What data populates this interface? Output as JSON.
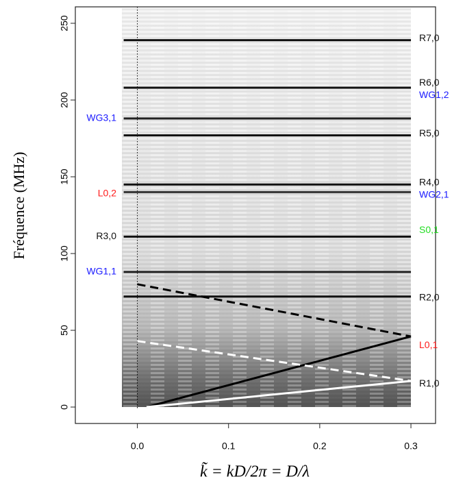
{
  "chart_data": {
    "type": "line",
    "ylabel": "Fréquence (MHz)",
    "xlabel": "k̃ = kD/2π = D/λ",
    "xlim": [
      -0.068,
      0.327
    ],
    "ylim": [
      -10.7,
      260.7
    ],
    "xticks": [
      {
        "value": 0,
        "label": "0.0"
      },
      0.1,
      0.2,
      0.3
    ],
    "yticks": [
      0,
      50,
      100,
      150,
      200,
      250
    ],
    "vline": 0,
    "series": [
      {
        "color": "#111111",
        "dash": false,
        "x": [
          -0.015,
          0.3
        ],
        "values": [
          239,
          239
        ]
      },
      {
        "color": "#111111",
        "dash": false,
        "x": [
          -0.015,
          0.3
        ],
        "values": [
          208,
          208
        ]
      },
      {
        "color": "#222222",
        "dash": false,
        "x": [
          -0.015,
          0.3
        ],
        "values": [
          188,
          188
        ]
      },
      {
        "color": "#111111",
        "dash": false,
        "x": [
          -0.015,
          0.3
        ],
        "values": [
          177,
          177
        ]
      },
      {
        "color": "#111111",
        "dash": false,
        "x": [
          -0.015,
          0.3
        ],
        "values": [
          145,
          145
        ]
      },
      {
        "color": "#333333",
        "dash": false,
        "x": [
          -0.015,
          0.3
        ],
        "values": [
          140,
          140
        ]
      },
      {
        "color": "#111111",
        "dash": false,
        "x": [
          -0.015,
          0.3
        ],
        "values": [
          111,
          111
        ]
      },
      {
        "color": "#222222",
        "dash": false,
        "x": [
          -0.015,
          0.3
        ],
        "values": [
          88,
          88
        ]
      },
      {
        "color": "#111111",
        "dash": false,
        "x": [
          -0.015,
          0.3
        ],
        "values": [
          72,
          72
        ]
      },
      {
        "color": "#000000",
        "dash": false,
        "x": [
          0.01,
          0.3
        ],
        "values": [
          0,
          46
        ]
      },
      {
        "color": "#000000",
        "dash": true,
        "x": [
          0.0,
          0.3
        ],
        "values": [
          80,
          46
        ]
      },
      {
        "color": "#ffffff",
        "dash": true,
        "x": [
          0.0,
          0.3
        ],
        "values": [
          43,
          17
        ]
      },
      {
        "color": "#ffffff",
        "dash": false,
        "x": [
          0.01,
          0.3
        ],
        "values": [
          0,
          17
        ]
      }
    ],
    "annotations": [
      {
        "text": "WG3,1",
        "y": 188,
        "side": "left",
        "color": "#1a1aff"
      },
      {
        "text": "L0,2",
        "y": 139,
        "side": "left",
        "color": "#ff1a1a"
      },
      {
        "text": "R3,0",
        "y": 111,
        "side": "left",
        "color": "#111111"
      },
      {
        "text": "WG1,1",
        "y": 88,
        "side": "left",
        "color": "#1a1aff"
      },
      {
        "text": "R7,0",
        "y": 240,
        "side": "right",
        "color": "#111111"
      },
      {
        "text": "R6,0",
        "y": 211,
        "side": "right",
        "color": "#111111"
      },
      {
        "text": "WG1,2",
        "y": 203,
        "side": "right",
        "color": "#1a1aff"
      },
      {
        "text": "R5,0",
        "y": 178,
        "side": "right",
        "color": "#111111"
      },
      {
        "text": "R4,0",
        "y": 146,
        "side": "right",
        "color": "#111111"
      },
      {
        "text": "WG2,1",
        "y": 138,
        "side": "right",
        "color": "#1a1aff"
      },
      {
        "text": "S0,1",
        "y": 115,
        "side": "right",
        "color": "#22dd22"
      },
      {
        "text": "R2,0",
        "y": 71,
        "side": "right",
        "color": "#111111"
      },
      {
        "text": "L0,1",
        "y": 40,
        "side": "right",
        "color": "#ff1a1a"
      },
      {
        "text": "R1,0",
        "y": 15,
        "side": "right",
        "color": "#111111"
      }
    ]
  }
}
